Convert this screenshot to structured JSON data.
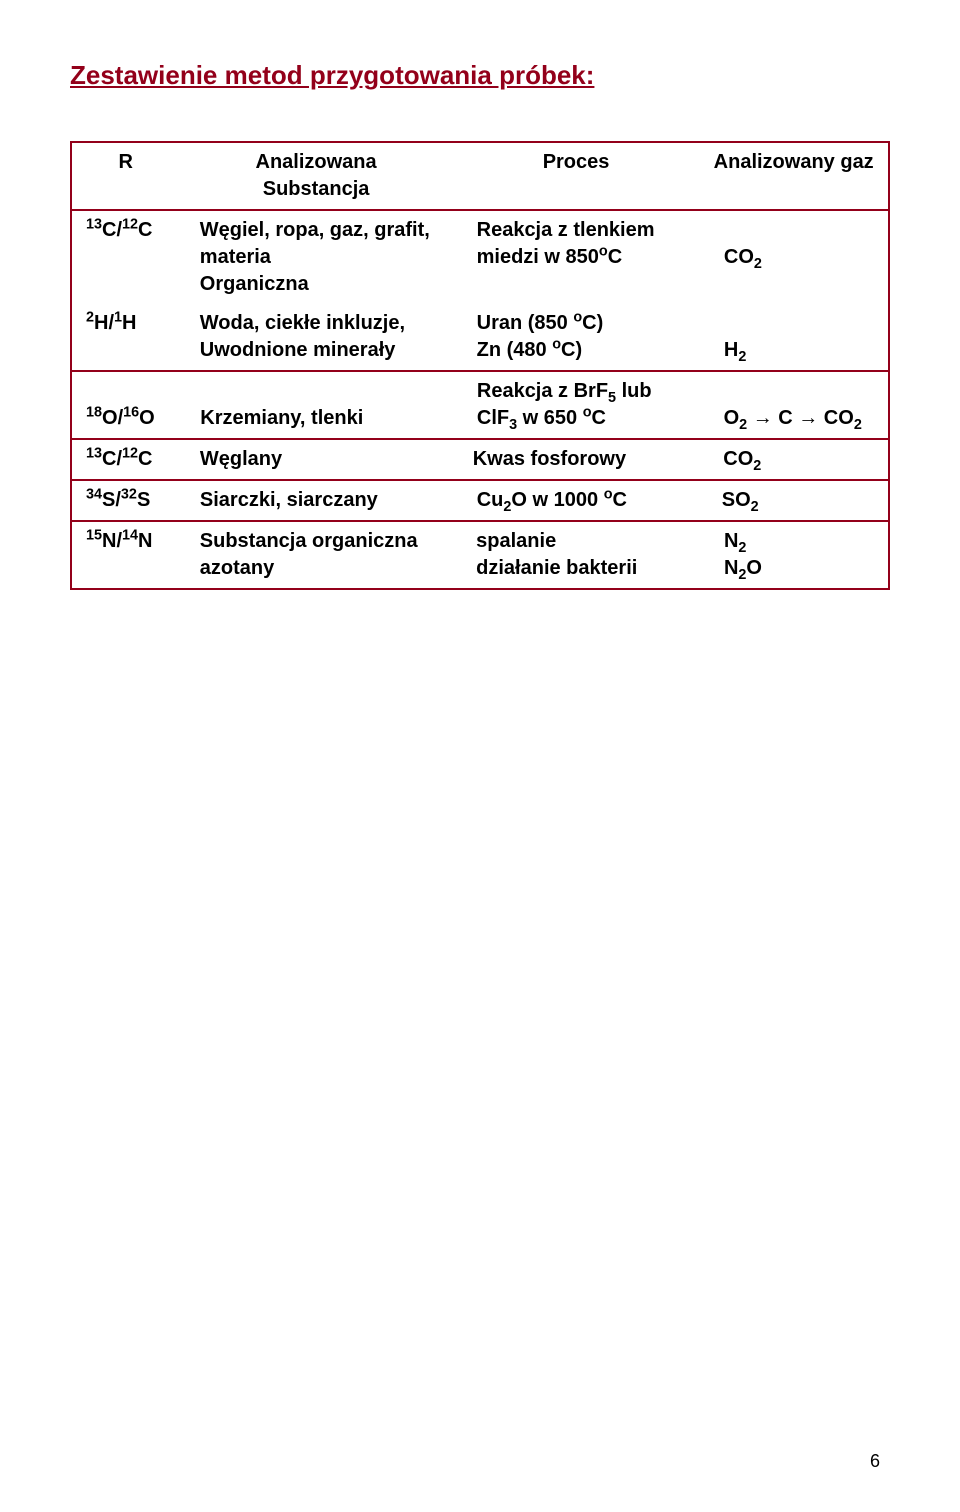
{
  "title": "Zestawienie metod przygotowania próbek:",
  "header": {
    "c1": "R",
    "c2": "Analizowana Substancja",
    "c3": "Proces",
    "c4": "Analizowany gaz"
  },
  "block2": {
    "r1c1": "13C/12C",
    "r1c2": "Węgiel, ropa, gaz, grafit, materia Organiczna",
    "r1c3": "Reakcja z tlenkiem miedzi w 850oC",
    "r1c4": "CO2",
    "r2c1": "2H/1H",
    "r2c2": "Woda, ciekłe inkluzje, Uwodnione minerały",
    "r2c3": "Uran (850 oC) Zn (480 oC)",
    "r2c4": "H2"
  },
  "block3": {
    "c1": "18O/16O",
    "c2": "Krzemiany, tlenki",
    "c3": "Reakcja z BrF5 lub ClF3 w 650 oC",
    "c4": "O2 → C → CO2"
  },
  "block4": {
    "c1": "13C/12C",
    "c2": "Węglany",
    "c3": "Kwas fosforowy",
    "c4": "CO2"
  },
  "block5": {
    "c1": "34S/32S",
    "c2": "Siarczki, siarczany",
    "c3": "Cu2O w 1000 oC",
    "c4": "SO2"
  },
  "block6": {
    "c1": "15N/14N",
    "c2": "Substancja organiczna azotany",
    "c3": "spalanie działanie bakterii",
    "c4": "N2 N2O"
  },
  "pageNumber": "6",
  "colors": {
    "accent": "#93001a",
    "text": "#000000",
    "background": "#ffffff"
  }
}
